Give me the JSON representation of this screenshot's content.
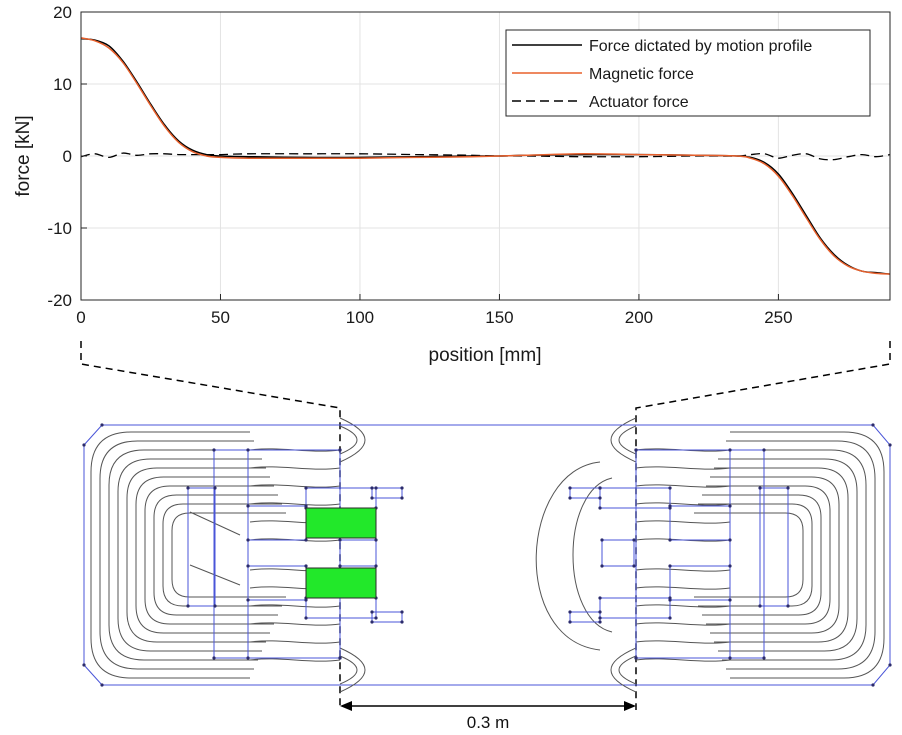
{
  "chart_data": {
    "type": "line",
    "xlabel": "position [mm]",
    "ylabel": "force [kN]",
    "xlim": [
      0,
      290
    ],
    "ylim": [
      -20,
      20
    ],
    "x_ticks": [
      0,
      50,
      100,
      150,
      200,
      250
    ],
    "y_ticks": [
      -20,
      -10,
      0,
      10,
      20
    ],
    "grid": true,
    "legend_position": "top-right",
    "series": [
      {
        "name": "Force dictated by motion profile",
        "color": "#000000",
        "style": "solid",
        "x": [
          0,
          5,
          10,
          15,
          20,
          25,
          30,
          35,
          40,
          45,
          50,
          60,
          80,
          100,
          120,
          140,
          150,
          160,
          180,
          200,
          220,
          235,
          240,
          245,
          250,
          255,
          260,
          265,
          270,
          275,
          280,
          285,
          290
        ],
        "y": [
          16.3,
          16.1,
          15.3,
          13.2,
          10.3,
          7.2,
          4.3,
          2.1,
          0.8,
          0.2,
          0.0,
          -0.1,
          -0.2,
          -0.2,
          -0.1,
          0.0,
          0.0,
          0.1,
          0.2,
          0.2,
          0.1,
          0.0,
          -0.2,
          -0.9,
          -2.5,
          -5.2,
          -8.3,
          -11.4,
          -13.7,
          -15.2,
          -16.0,
          -16.2,
          -16.4
        ]
      },
      {
        "name": "Magnetic force",
        "color": "#e8602c",
        "style": "solid",
        "x": [
          0,
          5,
          10,
          15,
          20,
          25,
          30,
          35,
          40,
          45,
          50,
          60,
          80,
          100,
          120,
          140,
          150,
          160,
          180,
          200,
          220,
          235,
          240,
          245,
          250,
          255,
          260,
          265,
          270,
          275,
          280,
          285,
          290
        ],
        "y": [
          16.4,
          16.0,
          15.0,
          13.0,
          10.1,
          7.0,
          4.1,
          1.9,
          0.6,
          0.0,
          -0.2,
          -0.3,
          -0.3,
          -0.3,
          -0.2,
          -0.1,
          0.0,
          0.1,
          0.3,
          0.2,
          0.1,
          0.0,
          -0.3,
          -1.1,
          -2.8,
          -5.5,
          -8.6,
          -11.6,
          -13.9,
          -15.3,
          -16.0,
          -16.3,
          -16.4
        ]
      },
      {
        "name": "Actuator force",
        "color": "#000000",
        "style": "dashed",
        "x": [
          0,
          5,
          10,
          15,
          20,
          25,
          30,
          35,
          40,
          45,
          50,
          60,
          80,
          100,
          120,
          140,
          150,
          160,
          180,
          200,
          220,
          235,
          240,
          245,
          250,
          255,
          260,
          265,
          270,
          275,
          280,
          285,
          290
        ],
        "y": [
          -0.1,
          0.3,
          -0.2,
          0.4,
          0.1,
          0.3,
          0.3,
          0.2,
          0.2,
          0.2,
          0.2,
          0.3,
          0.3,
          0.3,
          0.2,
          0.1,
          0.0,
          0.0,
          -0.1,
          -0.1,
          0.0,
          0.0,
          0.2,
          0.3,
          -0.3,
          0.1,
          0.3,
          -0.4,
          -0.5,
          -0.1,
          0.2,
          -0.1,
          0.2
        ]
      }
    ]
  },
  "annotation": {
    "distance_label": "0.3 m"
  }
}
